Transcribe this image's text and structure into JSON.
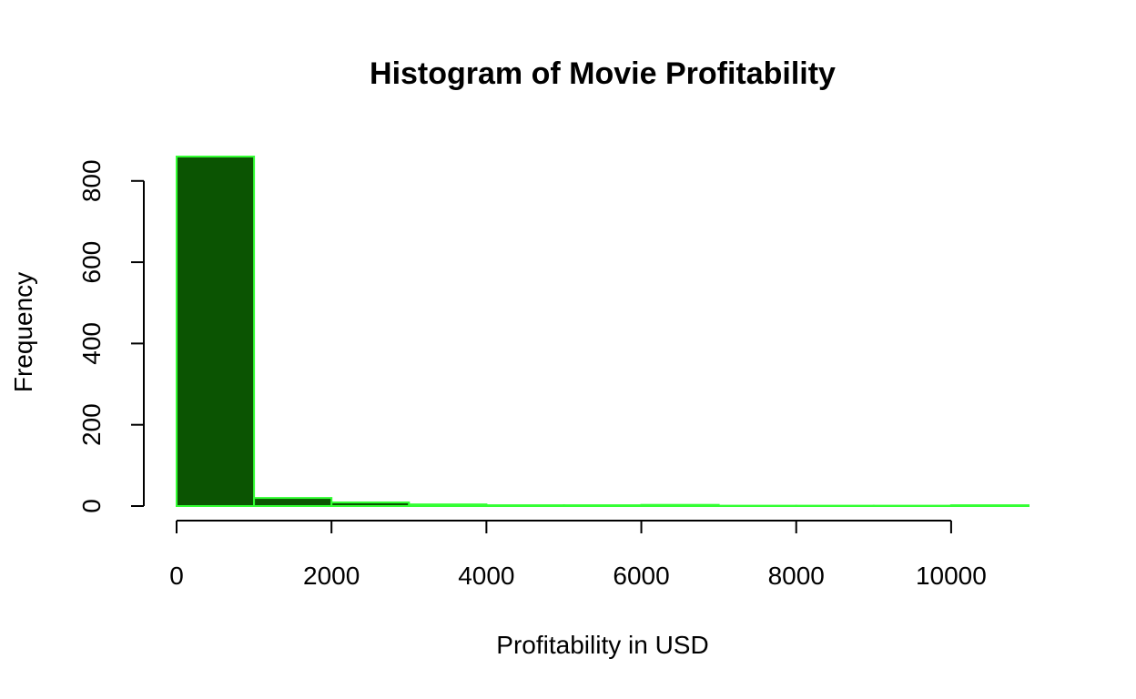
{
  "chart_data": {
    "type": "bar",
    "title": "Histogram of Movie Profitability",
    "xlabel": "Profitability in USD",
    "ylabel": "Frequency",
    "bins": [
      {
        "start": 0,
        "end": 1000,
        "count": 860
      },
      {
        "start": 1000,
        "end": 2000,
        "count": 20
      },
      {
        "start": 2000,
        "end": 3000,
        "count": 9
      },
      {
        "start": 3000,
        "end": 4000,
        "count": 4
      },
      {
        "start": 4000,
        "end": 5000,
        "count": 2
      },
      {
        "start": 5000,
        "end": 6000,
        "count": 2
      },
      {
        "start": 6000,
        "end": 7000,
        "count": 3
      },
      {
        "start": 7000,
        "end": 8000,
        "count": 1
      },
      {
        "start": 8000,
        "end": 9000,
        "count": 1
      },
      {
        "start": 9000,
        "end": 10000,
        "count": 1
      },
      {
        "start": 10000,
        "end": 11000,
        "count": 2
      }
    ],
    "xlim": [
      0,
      11000
    ],
    "ylim": [
      0,
      860
    ],
    "x_ticks": [
      0,
      2000,
      4000,
      6000,
      8000,
      10000
    ],
    "y_ticks": [
      0,
      200,
      400,
      600,
      800
    ],
    "x_tick_labels": [
      "0",
      "2000",
      "4000",
      "6000",
      "8000",
      "10000"
    ],
    "y_tick_labels": [
      "0",
      "200",
      "400",
      "600",
      "800"
    ],
    "grid": false,
    "legend": "none",
    "colors": {
      "bar_fill": "#0b5402",
      "bar_border": "#33ff33"
    }
  }
}
